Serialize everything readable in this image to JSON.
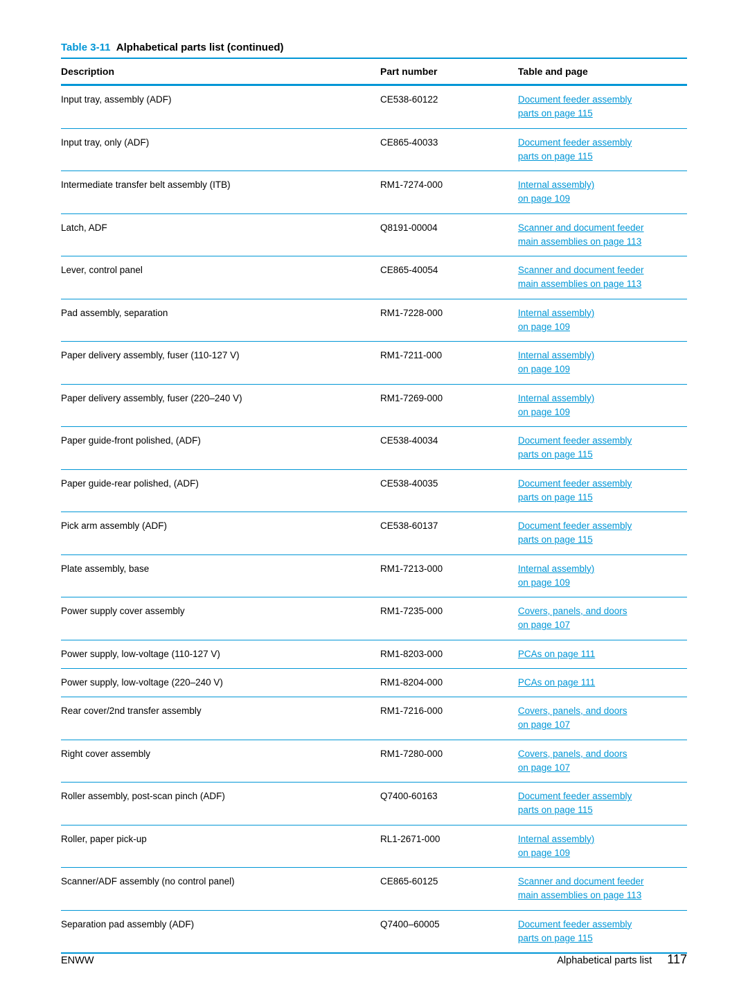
{
  "title": {
    "number": "Table 3-11",
    "text": "Alphabetical parts list (continued)"
  },
  "columns": {
    "description": "Description",
    "part_number": "Part number",
    "table_and_page": "Table and page",
    "width_description": "51%",
    "width_part": "22%",
    "width_ref": "27%"
  },
  "rows": [
    {
      "description": "Input tray, assembly (ADF)",
      "part_number": "CE538-60122",
      "refs": [
        {
          "text": "Document feeder assembly"
        },
        {
          "text": "parts on page 115"
        }
      ]
    },
    {
      "description": "Input tray, only (ADF)",
      "part_number": "CE865-40033",
      "refs": [
        {
          "text": "Document feeder assembly"
        },
        {
          "text": "parts on page 115"
        }
      ]
    },
    {
      "description": "Intermediate transfer belt assembly (ITB)",
      "part_number": "RM1-7274-000",
      "refs": [
        {
          "text": "Internal assembly)"
        },
        {
          "text": "on page 109"
        }
      ]
    },
    {
      "description": "Latch, ADF",
      "part_number": "Q8191-00004",
      "refs": [
        {
          "text": "Scanner and document feeder"
        },
        {
          "text": "main assemblies on page 113"
        }
      ]
    },
    {
      "description": "Lever, control panel",
      "part_number": "CE865-40054",
      "refs": [
        {
          "text": "Scanner and document feeder"
        },
        {
          "text": "main assemblies on page 113"
        }
      ]
    },
    {
      "description": "Pad assembly, separation",
      "part_number": "RM1-7228-000",
      "refs": [
        {
          "text": "Internal assembly)"
        },
        {
          "text": "on page 109"
        }
      ]
    },
    {
      "description": "Paper delivery assembly, fuser (110-127 V)",
      "part_number": "RM1-7211-000",
      "refs": [
        {
          "text": "Internal assembly)"
        },
        {
          "text": "on page 109"
        }
      ]
    },
    {
      "description": "Paper delivery assembly, fuser (220–240 V)",
      "part_number": "RM1-7269-000",
      "refs": [
        {
          "text": "Internal assembly)"
        },
        {
          "text": "on page 109"
        }
      ]
    },
    {
      "description": "Paper guide-front polished, (ADF)",
      "part_number": "CE538-40034",
      "refs": [
        {
          "text": "Document feeder assembly"
        },
        {
          "text": "parts on page 115"
        }
      ]
    },
    {
      "description": "Paper guide-rear polished, (ADF)",
      "part_number": "CE538-40035",
      "refs": [
        {
          "text": "Document feeder assembly"
        },
        {
          "text": "parts on page 115"
        }
      ]
    },
    {
      "description": "Pick arm assembly (ADF)",
      "part_number": "CE538-60137",
      "refs": [
        {
          "text": "Document feeder assembly"
        },
        {
          "text": "parts on page 115"
        }
      ]
    },
    {
      "description": "Plate assembly, base",
      "part_number": "RM1-7213-000",
      "refs": [
        {
          "text": "Internal assembly)"
        },
        {
          "text": "on page 109"
        }
      ]
    },
    {
      "description": "Power supply cover assembly",
      "part_number": "RM1-7235-000",
      "refs": [
        {
          "text": "Covers, panels, and doors"
        },
        {
          "text": "on page 107"
        }
      ]
    },
    {
      "description": "Power supply, low-voltage (110-127 V)",
      "part_number": "RM1-8203-000",
      "refs": [
        {
          "text": "PCAs on page 111"
        }
      ]
    },
    {
      "description": "Power supply, low-voltage (220–240 V)",
      "part_number": "RM1-8204-000",
      "refs": [
        {
          "text": "PCAs on page 111"
        }
      ]
    },
    {
      "description": "Rear cover/2nd transfer assembly",
      "part_number": "RM1-7216-000",
      "refs": [
        {
          "text": "Covers, panels, and doors"
        },
        {
          "text": "on page 107"
        }
      ]
    },
    {
      "description": "Right cover assembly",
      "part_number": "RM1-7280-000",
      "refs": [
        {
          "text": "Covers, panels, and doors"
        },
        {
          "text": "on page 107"
        }
      ]
    },
    {
      "description": "Roller assembly, post-scan pinch (ADF)",
      "part_number": "Q7400-60163",
      "refs": [
        {
          "text": "Document feeder assembly"
        },
        {
          "text": "parts on page 115"
        }
      ]
    },
    {
      "description": "Roller, paper pick-up",
      "part_number": "RL1-2671-000",
      "refs": [
        {
          "text": "Internal assembly)"
        },
        {
          "text": "on page 109"
        }
      ]
    },
    {
      "description": "Scanner/ADF assembly (no control panel)",
      "part_number": "CE865-60125",
      "refs": [
        {
          "text": "Scanner and document feeder"
        },
        {
          "text": "main assemblies on page 113"
        }
      ]
    },
    {
      "description": "Separation pad assembly (ADF)",
      "part_number": "Q7400–60005",
      "refs": [
        {
          "text": "Document feeder assembly"
        },
        {
          "text": "parts on page 115"
        }
      ]
    }
  ],
  "footer": {
    "left": "ENWW",
    "right_label": "Alphabetical parts list",
    "page_number": "117"
  },
  "colors": {
    "accent": "#0096d6",
    "text": "#000000",
    "background": "#ffffff"
  }
}
